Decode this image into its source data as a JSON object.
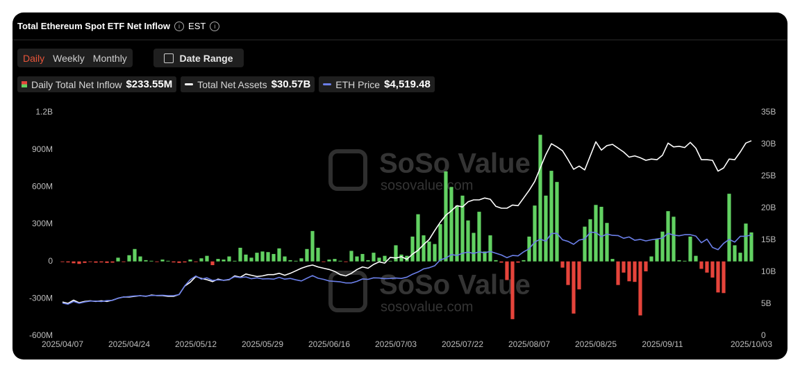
{
  "header": {
    "title": "Total Ethereum Spot ETF Net Inflow",
    "timezone": "EST"
  },
  "controls": {
    "periods": [
      "Daily",
      "Weekly",
      "Monthly"
    ],
    "active_period": 0,
    "date_range": "Date Range"
  },
  "watermark": {
    "brand": "SoSo Value",
    "site": "sosovalue.com"
  },
  "chart_data": {
    "type": "bar",
    "categories": [
      "2025/04/07",
      null,
      null,
      null,
      null,
      null,
      null,
      null,
      null,
      null,
      null,
      null,
      "2025/04/24",
      null,
      null,
      null,
      null,
      null,
      null,
      null,
      null,
      null,
      null,
      null,
      "2025/05/12",
      null,
      null,
      null,
      null,
      null,
      null,
      null,
      null,
      null,
      null,
      null,
      "2025/05/29",
      null,
      null,
      null,
      null,
      null,
      null,
      null,
      null,
      null,
      null,
      null,
      "2025/06/16",
      null,
      null,
      null,
      null,
      null,
      null,
      null,
      null,
      null,
      null,
      null,
      "2025/07/03",
      null,
      null,
      null,
      null,
      null,
      null,
      null,
      null,
      null,
      null,
      null,
      "2025/07/22",
      null,
      null,
      null,
      null,
      null,
      null,
      null,
      null,
      null,
      null,
      null,
      "2025/08/07",
      null,
      null,
      null,
      null,
      null,
      null,
      null,
      null,
      null,
      null,
      null,
      "2025/08/25",
      null,
      null,
      null,
      null,
      null,
      null,
      null,
      null,
      null,
      null,
      null,
      "2025/09/11",
      null,
      null,
      null,
      null,
      null,
      null,
      null,
      null,
      null,
      null,
      null,
      null,
      null,
      null,
      null,
      "2025/10/03"
    ],
    "series": [
      {
        "name": "Daily Total Net Inflow",
        "latest": "$233.55M",
        "color": "#62d162",
        "negative_color": "#e5443b",
        "values": [
          -5,
          -8,
          -15,
          -20,
          -12,
          -5,
          -10,
          -8,
          -12,
          -10,
          30,
          -5,
          50,
          100,
          40,
          10,
          5,
          -5,
          15,
          5,
          -8,
          -12,
          -8,
          15,
          -5,
          25,
          45,
          -30,
          20,
          15,
          40,
          5,
          110,
          55,
          30,
          70,
          80,
          75,
          60,
          105,
          40,
          10,
          5,
          25,
          100,
          245,
          110,
          -5,
          15,
          20,
          5,
          -5,
          85,
          40,
          60,
          10,
          70,
          30,
          45,
          5,
          130,
          55,
          45,
          200,
          380,
          210,
          160,
          140,
          300,
          725,
          600,
          450,
          530,
          330,
          230,
          400,
          80,
          210,
          10,
          -10,
          -150,
          -465,
          -10,
          10,
          200,
          450,
          1020,
          530,
          730,
          640,
          -50,
          -190,
          -420,
          -225,
          280,
          340,
          455,
          440,
          310,
          20,
          -190,
          -90,
          -160,
          -165,
          -435,
          -80,
          40,
          180,
          240,
          405,
          360,
          10,
          5,
          200,
          45,
          -60,
          -90,
          -130,
          -250,
          -255,
          545,
          130,
          70,
          305,
          233.55
        ]
      },
      {
        "name": "Total Net Assets",
        "latest": "$30.57B",
        "color": "#ffffff",
        "axis": "y2",
        "values": [
          5.3,
          5.1,
          5.6,
          5.2,
          5.4,
          5.5,
          5.4,
          5.5,
          5.4,
          5.6,
          5.9,
          6.1,
          6.1,
          6.2,
          6.3,
          6.2,
          6.4,
          6.3,
          6.3,
          6.2,
          6.2,
          6.5,
          7.8,
          8.4,
          9.3,
          9.0,
          8.8,
          8.5,
          8.9,
          8.7,
          8.8,
          9.4,
          9.2,
          9.7,
          9.5,
          9.3,
          9.4,
          9.6,
          9.6,
          9.8,
          9.5,
          9.8,
          10.2,
          10.6,
          10.9,
          11.1,
          10.8,
          10.6,
          10.4,
          10.1,
          9.6,
          9.4,
          9.8,
          10.4,
          10.8,
          10.6,
          11.2,
          11.6,
          11.4,
          12.3,
          12.2,
          12.4,
          12.0,
          12.8,
          13.4,
          14.3,
          15.1,
          16.5,
          17.8,
          18.9,
          19.6,
          20.4,
          20.2,
          21.0,
          21.3,
          21.3,
          21.6,
          21.4,
          20.3,
          20.0,
          20.0,
          20.5,
          20.4,
          21.6,
          22.8,
          24.2,
          26.3,
          28.4,
          30.1,
          29.6,
          29.0,
          27.6,
          26.1,
          26.6,
          26.0,
          28.2,
          30.4,
          29.1,
          29.8,
          30.0,
          29.4,
          28.8,
          28.0,
          28.2,
          27.9,
          27.5,
          27.7,
          27.6,
          28.3,
          30.2,
          29.6,
          29.7,
          29.5,
          30.3,
          29.4,
          27.6,
          27.6,
          27.5,
          25.8,
          26.3,
          27.7,
          27.6,
          28.8,
          30.2,
          30.57
        ]
      },
      {
        "name": "ETH Price",
        "latest": "$4,519.48",
        "color": "#6b7fe8",
        "axis": "y3",
        "values": [
          1470,
          1420,
          1540,
          1460,
          1520,
          1560,
          1560,
          1540,
          1580,
          1590,
          1690,
          1740,
          1760,
          1790,
          1800,
          1780,
          1810,
          1810,
          1820,
          1800,
          1800,
          1850,
          2240,
          2520,
          2680,
          2540,
          2600,
          2480,
          2510,
          2490,
          2530,
          2650,
          2610,
          2640,
          2560,
          2600,
          2550,
          2560,
          2540,
          2620,
          2540,
          2570,
          2510,
          2460,
          2580,
          2700,
          2580,
          2530,
          2460,
          2440,
          2420,
          2370,
          2370,
          2440,
          2550,
          2530,
          2600,
          2590,
          2560,
          2570,
          2590,
          2570,
          2630,
          2760,
          2860,
          3000,
          3050,
          3140,
          3400,
          3480,
          3640,
          3600,
          3700,
          3750,
          3690,
          3760,
          3720,
          3780,
          3700,
          3620,
          3500,
          3600,
          3580,
          3760,
          3900,
          4200,
          4330,
          4240,
          4580,
          4590,
          4300,
          4230,
          4100,
          4290,
          4340,
          4640,
          4630,
          4440,
          4560,
          4500,
          4490,
          4370,
          4430,
          4280,
          4320,
          4250,
          4300,
          4340,
          4380,
          4590,
          4510,
          4480,
          4530,
          4530,
          4470,
          4170,
          4330,
          3960,
          3860,
          4140,
          4320,
          4200,
          4460,
          4460,
          4519.48
        ]
      }
    ],
    "ylim": [
      -600,
      1200
    ],
    "yticks": [
      {
        "value": -600,
        "label": "-600M"
      },
      {
        "value": -300,
        "label": "-300M"
      },
      0,
      {
        "value": 300,
        "label": "300M"
      },
      {
        "value": 600,
        "label": "600M"
      },
      {
        "value": 900,
        "label": "900M"
      },
      {
        "value": 1200,
        "label": "1.2B"
      }
    ],
    "y2lim": [
      0,
      35
    ],
    "y2ticks": [
      0,
      {
        "value": 5,
        "label": "5B"
      },
      {
        "value": 10,
        "label": "10B"
      },
      {
        "value": 15,
        "label": "15B"
      },
      {
        "value": 20,
        "label": "20B"
      },
      {
        "value": 25,
        "label": "25B"
      },
      {
        "value": 30,
        "label": "30B"
      },
      {
        "value": 35,
        "label": "35B"
      }
    ],
    "y3lim": [
      0,
      10000
    ],
    "grid": false
  }
}
